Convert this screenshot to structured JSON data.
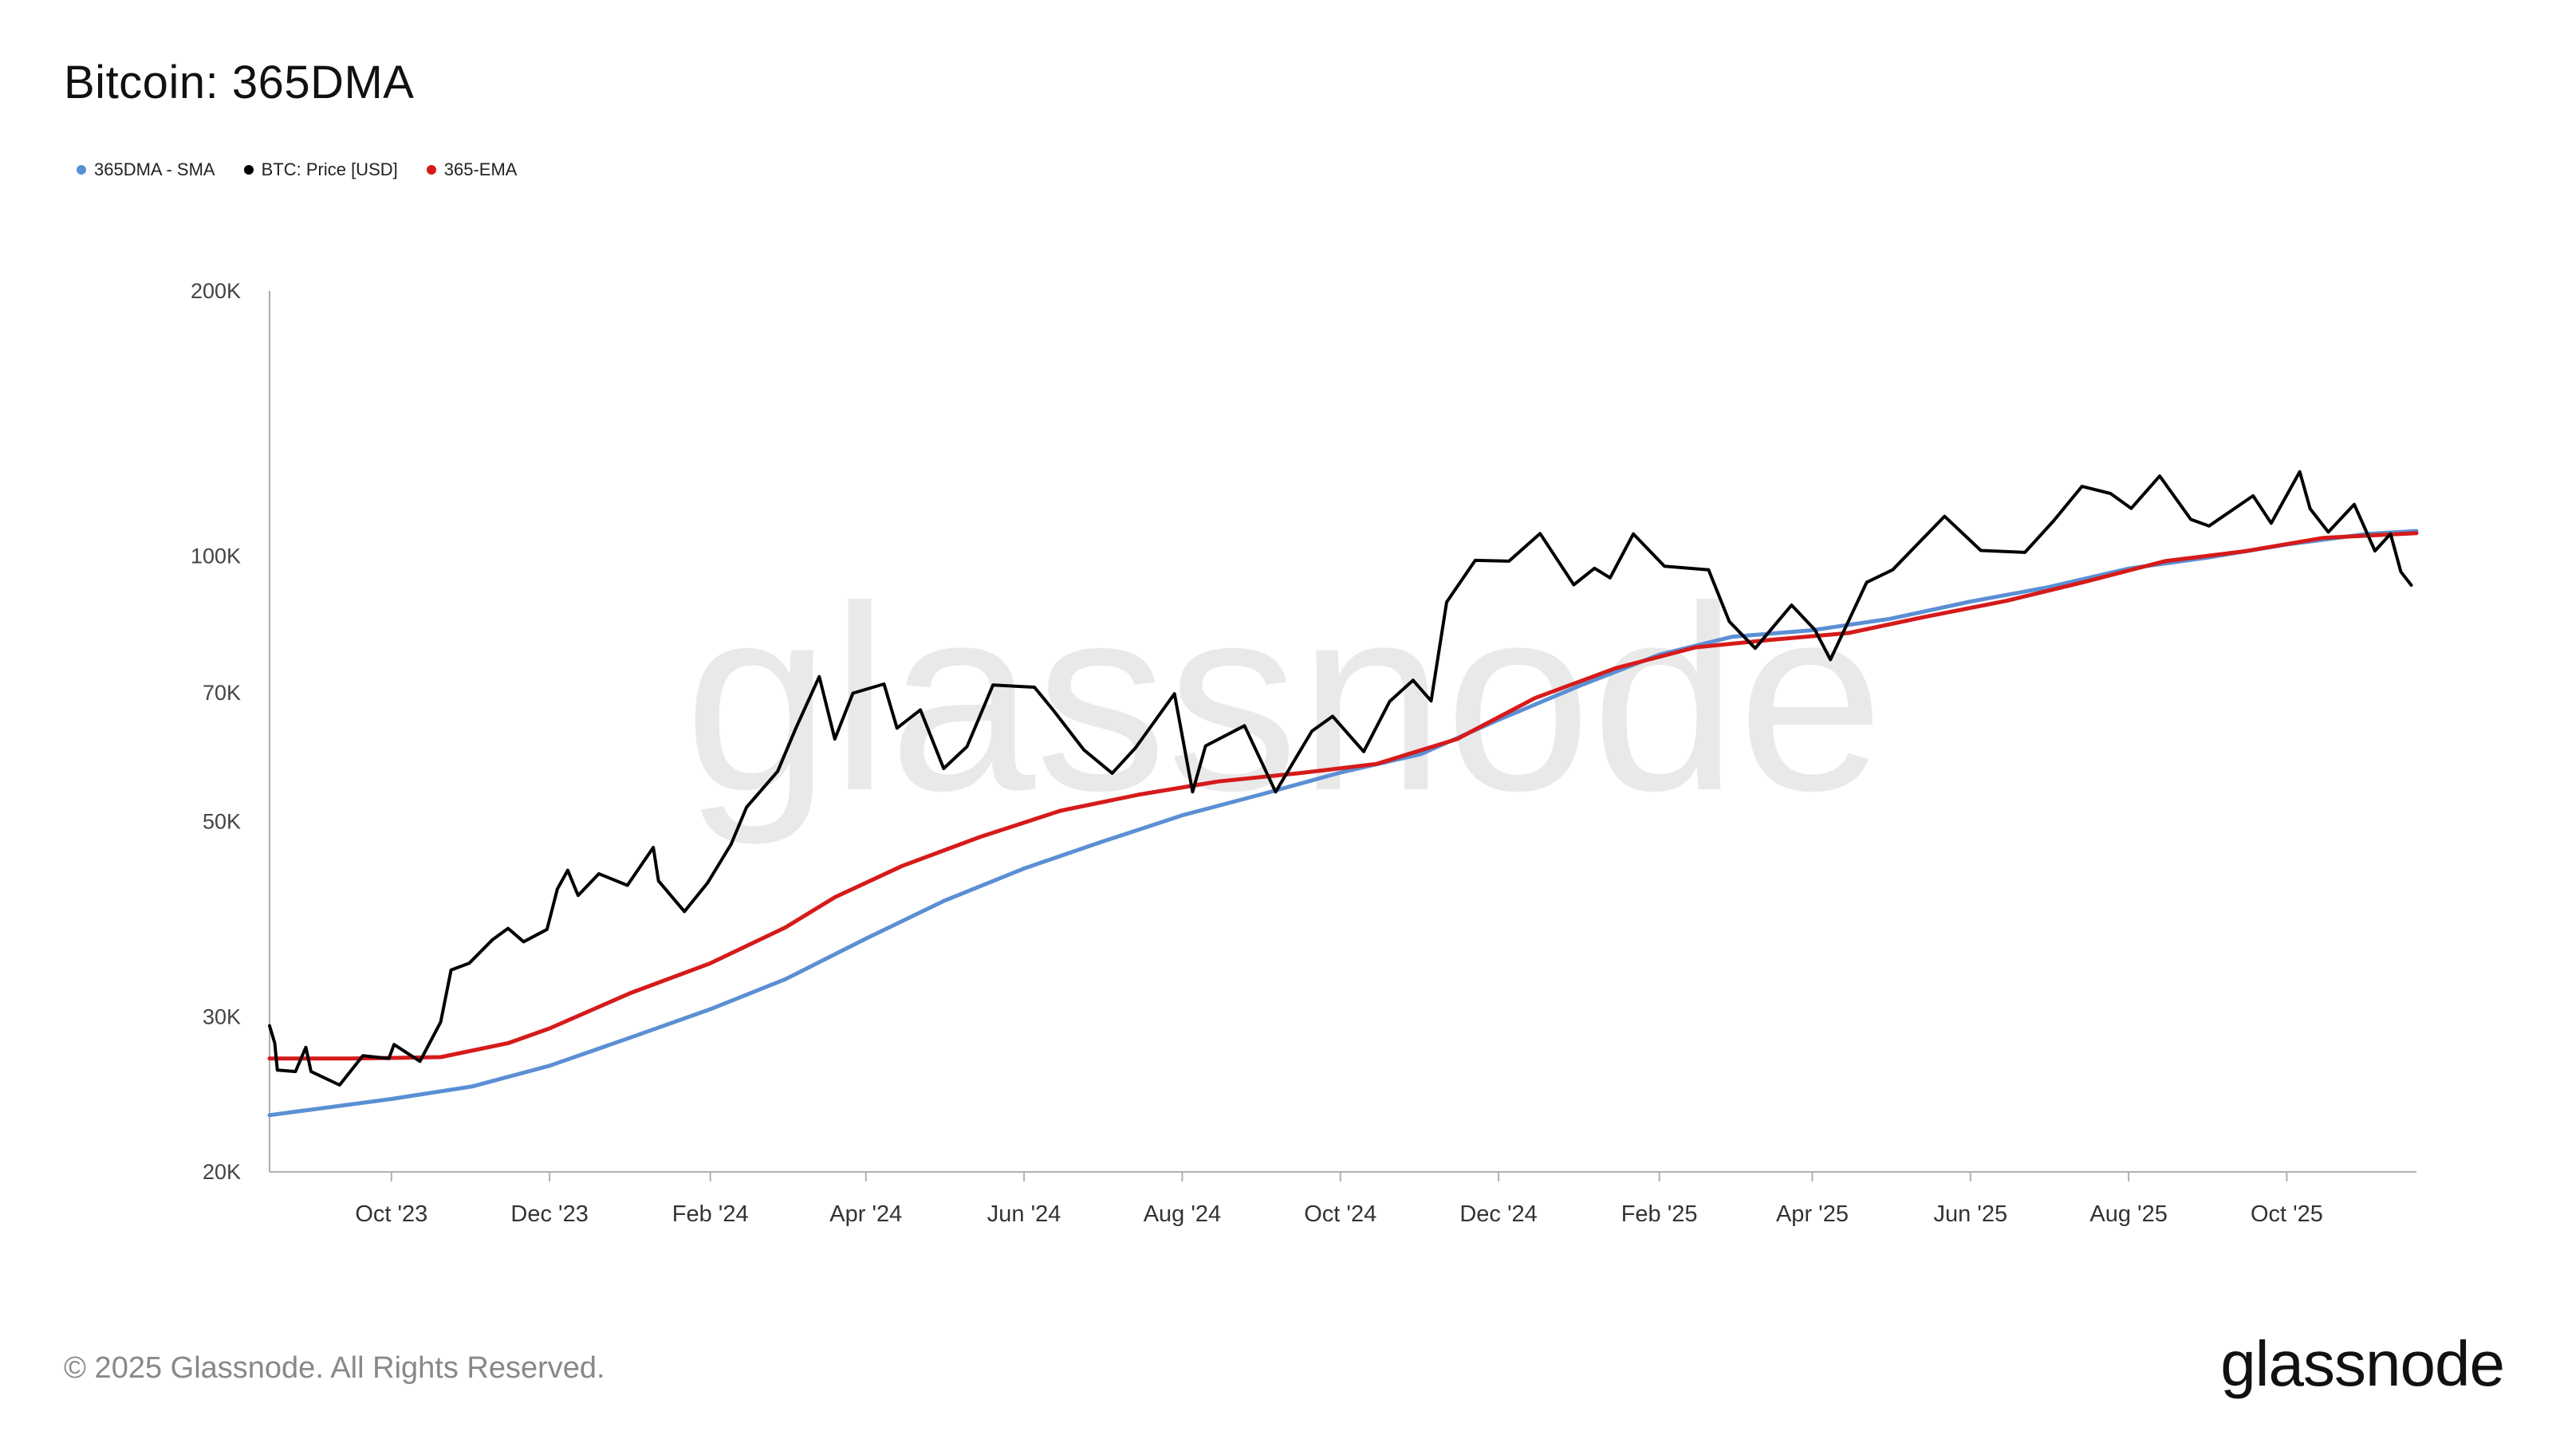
{
  "title": "Bitcoin: 365DMA",
  "footer": {
    "copyright": "© 2025 Glassnode. All Rights Reserved.",
    "logo": "glassnode"
  },
  "watermark": "glassnode",
  "legend": [
    {
      "name": "365DMA - SMA",
      "color": "#5b8fd4"
    },
    {
      "name": "BTC: Price [USD]",
      "color": "#000000"
    },
    {
      "name": "365-EMA",
      "color": "#d61a1a"
    }
  ],
  "chart_data": {
    "type": "line",
    "yscale": "log",
    "ylim": [
      20000,
      200000
    ],
    "xlim": [
      "2023-08-15",
      "2025-11-20"
    ],
    "grid": false,
    "legend_position": "top-left",
    "yticks": [
      {
        "value": 20000,
        "label": "20K"
      },
      {
        "value": 30000,
        "label": "30K"
      },
      {
        "value": 50000,
        "label": "50K"
      },
      {
        "value": 70000,
        "label": "70K"
      },
      {
        "value": 100000,
        "label": "100K"
      },
      {
        "value": 200000,
        "label": "200K"
      }
    ],
    "xticks": [
      {
        "date": "2023-10-01",
        "label": "Oct '23"
      },
      {
        "date": "2023-12-01",
        "label": "Dec '23"
      },
      {
        "date": "2024-02-01",
        "label": "Feb '24"
      },
      {
        "date": "2024-04-01",
        "label": "Apr '24"
      },
      {
        "date": "2024-06-01",
        "label": "Jun '24"
      },
      {
        "date": "2024-08-01",
        "label": "Aug '24"
      },
      {
        "date": "2024-10-01",
        "label": "Oct '24"
      },
      {
        "date": "2024-12-01",
        "label": "Dec '24"
      },
      {
        "date": "2025-02-01",
        "label": "Feb '25"
      },
      {
        "date": "2025-04-01",
        "label": "Apr '25"
      },
      {
        "date": "2025-06-01",
        "label": "Jun '25"
      },
      {
        "date": "2025-08-01",
        "label": "Aug '25"
      },
      {
        "date": "2025-10-01",
        "label": "Oct '25"
      }
    ],
    "series": [
      {
        "name": "BTC: Price [USD]",
        "color": "#000000",
        "points": [
          [
            "2023-08-15",
            29300
          ],
          [
            "2023-08-17",
            28000
          ],
          [
            "2023-08-18",
            26100
          ],
          [
            "2023-08-25",
            26000
          ],
          [
            "2023-08-29",
            27700
          ],
          [
            "2023-08-31",
            26000
          ],
          [
            "2023-09-11",
            25100
          ],
          [
            "2023-09-20",
            27100
          ],
          [
            "2023-09-30",
            26900
          ],
          [
            "2023-10-02",
            27900
          ],
          [
            "2023-10-12",
            26700
          ],
          [
            "2023-10-20",
            29600
          ],
          [
            "2023-10-24",
            33900
          ],
          [
            "2023-10-31",
            34500
          ],
          [
            "2023-11-09",
            36700
          ],
          [
            "2023-11-15",
            37800
          ],
          [
            "2023-11-21",
            36500
          ],
          [
            "2023-11-30",
            37700
          ],
          [
            "2023-12-04",
            41900
          ],
          [
            "2023-12-08",
            44000
          ],
          [
            "2023-12-12",
            41200
          ],
          [
            "2023-12-20",
            43600
          ],
          [
            "2023-12-31",
            42300
          ],
          [
            "2024-01-10",
            46700
          ],
          [
            "2024-01-12",
            42800
          ],
          [
            "2024-01-22",
            39500
          ],
          [
            "2024-01-31",
            42600
          ],
          [
            "2024-02-09",
            47100
          ],
          [
            "2024-02-15",
            51900
          ],
          [
            "2024-02-27",
            57000
          ],
          [
            "2024-03-05",
            63800
          ],
          [
            "2024-03-14",
            73000
          ],
          [
            "2024-03-20",
            62000
          ],
          [
            "2024-03-27",
            69900
          ],
          [
            "2024-04-08",
            71600
          ],
          [
            "2024-04-13",
            63800
          ],
          [
            "2024-04-22",
            66900
          ],
          [
            "2024-05-01",
            57400
          ],
          [
            "2024-05-10",
            60800
          ],
          [
            "2024-05-20",
            71400
          ],
          [
            "2024-06-05",
            71000
          ],
          [
            "2024-06-12",
            67000
          ],
          [
            "2024-06-24",
            60300
          ],
          [
            "2024-07-05",
            56700
          ],
          [
            "2024-07-14",
            60600
          ],
          [
            "2024-07-29",
            69800
          ],
          [
            "2024-08-05",
            54000
          ],
          [
            "2024-08-10",
            60900
          ],
          [
            "2024-08-25",
            64200
          ],
          [
            "2024-09-06",
            54000
          ],
          [
            "2024-09-20",
            63300
          ],
          [
            "2024-09-28",
            65800
          ],
          [
            "2024-10-10",
            60000
          ],
          [
            "2024-10-20",
            68400
          ],
          [
            "2024-10-29",
            72300
          ],
          [
            "2024-11-05",
            68500
          ],
          [
            "2024-11-11",
            88700
          ],
          [
            "2024-11-22",
            98900
          ],
          [
            "2024-12-05",
            98700
          ],
          [
            "2024-12-17",
            106100
          ],
          [
            "2024-12-30",
            92800
          ],
          [
            "2025-01-07",
            96900
          ],
          [
            "2025-01-13",
            94500
          ],
          [
            "2025-01-22",
            106000
          ],
          [
            "2025-02-03",
            97400
          ],
          [
            "2025-02-20",
            96500
          ],
          [
            "2025-02-28",
            84300
          ],
          [
            "2025-03-10",
            78600
          ],
          [
            "2025-03-24",
            88000
          ],
          [
            "2025-04-02",
            82500
          ],
          [
            "2025-04-08",
            76300
          ],
          [
            "2025-04-22",
            93400
          ],
          [
            "2025-05-02",
            96500
          ],
          [
            "2025-05-22",
            111000
          ],
          [
            "2025-06-05",
            101500
          ],
          [
            "2025-06-22",
            101000
          ],
          [
            "2025-07-03",
            109600
          ],
          [
            "2025-07-14",
            120000
          ],
          [
            "2025-07-25",
            117800
          ],
          [
            "2025-08-02",
            113300
          ],
          [
            "2025-08-13",
            123300
          ],
          [
            "2025-08-25",
            110100
          ],
          [
            "2025-09-01",
            108200
          ],
          [
            "2025-09-18",
            117100
          ],
          [
            "2025-09-25",
            109000
          ],
          [
            "2025-10-06",
            124700
          ],
          [
            "2025-10-10",
            113200
          ],
          [
            "2025-10-17",
            106500
          ],
          [
            "2025-10-27",
            114500
          ],
          [
            "2025-11-04",
            101400
          ],
          [
            "2025-11-10",
            106000
          ],
          [
            "2025-11-14",
            96000
          ],
          [
            "2025-11-18",
            92700
          ]
        ]
      },
      {
        "name": "365DMA - SMA",
        "color": "#5b8fd4",
        "points": [
          [
            "2023-08-15",
            23200
          ],
          [
            "2023-10-01",
            24200
          ],
          [
            "2023-11-01",
            25000
          ],
          [
            "2023-12-01",
            26400
          ],
          [
            "2024-01-01",
            28400
          ],
          [
            "2024-02-01",
            30600
          ],
          [
            "2024-03-01",
            33100
          ],
          [
            "2024-04-01",
            36800
          ],
          [
            "2024-05-01",
            40600
          ],
          [
            "2024-06-01",
            44200
          ],
          [
            "2024-07-01",
            47400
          ],
          [
            "2024-08-01",
            50800
          ],
          [
            "2024-09-01",
            53700
          ],
          [
            "2024-10-01",
            56800
          ],
          [
            "2024-11-01",
            59600
          ],
          [
            "2024-12-01",
            65200
          ],
          [
            "2025-01-01",
            71200
          ],
          [
            "2025-02-01",
            77300
          ],
          [
            "2025-03-01",
            81000
          ],
          [
            "2025-04-01",
            82400
          ],
          [
            "2025-05-01",
            84900
          ],
          [
            "2025-06-01",
            88800
          ],
          [
            "2025-07-01",
            92200
          ],
          [
            "2025-08-01",
            96800
          ],
          [
            "2025-09-01",
            99700
          ],
          [
            "2025-10-01",
            103100
          ],
          [
            "2025-11-01",
            106000
          ],
          [
            "2025-11-20",
            106800
          ]
        ]
      },
      {
        "name": "365-EMA",
        "color": "#d61a1a",
        "points": [
          [
            "2023-08-15",
            26900
          ],
          [
            "2023-09-15",
            26900
          ],
          [
            "2023-10-20",
            27000
          ],
          [
            "2023-11-15",
            28000
          ],
          [
            "2023-12-01",
            29100
          ],
          [
            "2024-01-01",
            31900
          ],
          [
            "2024-02-01",
            34500
          ],
          [
            "2024-03-01",
            37900
          ],
          [
            "2024-03-20",
            41000
          ],
          [
            "2024-04-15",
            44500
          ],
          [
            "2024-05-15",
            48000
          ],
          [
            "2024-06-15",
            51400
          ],
          [
            "2024-07-15",
            53600
          ],
          [
            "2024-08-15",
            55500
          ],
          [
            "2024-09-15",
            56700
          ],
          [
            "2024-10-15",
            58100
          ],
          [
            "2024-11-15",
            62000
          ],
          [
            "2024-12-15",
            69000
          ],
          [
            "2025-01-15",
            74600
          ],
          [
            "2025-02-15",
            78800
          ],
          [
            "2025-03-15",
            80300
          ],
          [
            "2025-04-15",
            81800
          ],
          [
            "2025-05-15",
            85400
          ],
          [
            "2025-06-15",
            89000
          ],
          [
            "2025-07-15",
            93500
          ],
          [
            "2025-08-15",
            98700
          ],
          [
            "2025-09-15",
            101300
          ],
          [
            "2025-10-15",
            104900
          ],
          [
            "2025-11-20",
            106200
          ]
        ]
      }
    ]
  }
}
